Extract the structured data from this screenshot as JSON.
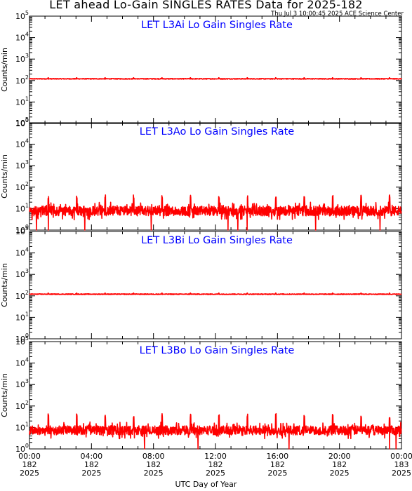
{
  "header": {
    "title": "LET ahead Lo-Gain SINGLES RATES Data for 2025-182",
    "timestamp": "Thu Jul  3 10:00:45 2025 ACE Science Center"
  },
  "colors": {
    "series": "#ff0000",
    "panel_title": "#0000ff",
    "axes": "#000000"
  },
  "chart_data": [
    {
      "type": "line",
      "title": "LET L3Ai Lo Gain Singles Rate",
      "ylabel": "Counts/min",
      "yscale": "log",
      "ylim": [
        1,
        100000
      ],
      "xlim": [
        "2025-07-01T00:00",
        "2025-07-02T00:00"
      ],
      "baseline": 120,
      "spike_value": 135,
      "spike_period_minutes": 110,
      "noise_range": [
        115,
        125
      ]
    },
    {
      "type": "line",
      "title": "LET L3Ao Lo Gain Singles Rate",
      "ylabel": "Counts/min",
      "yscale": "log",
      "ylim": [
        1,
        100000
      ],
      "xlim": [
        "2025-07-01T00:00",
        "2025-07-02T00:00"
      ],
      "baseline": 9,
      "spike_value": 40,
      "spike_period_minutes": 110,
      "noise_range": [
        3,
        20
      ],
      "dropouts_to": 1
    },
    {
      "type": "line",
      "title": "LET L3Bi Lo Gain Singles Rate",
      "ylabel": "Counts/min",
      "yscale": "log",
      "ylim": [
        1,
        100000
      ],
      "xlim": [
        "2025-07-01T00:00",
        "2025-07-02T00:00"
      ],
      "baseline": 120,
      "spike_value": 135,
      "spike_period_minutes": 110,
      "noise_range": [
        115,
        125
      ]
    },
    {
      "type": "line",
      "title": "LET L3Bo Lo Gain Singles Rate",
      "ylabel": "Counts/min",
      "yscale": "log",
      "ylim": [
        1,
        100000
      ],
      "xlim": [
        "2025-07-01T00:00",
        "2025-07-02T00:00"
      ],
      "baseline": 8,
      "spike_value": 40,
      "spike_period_minutes": 110,
      "noise_range": [
        3,
        18
      ],
      "dropouts_to": 1
    }
  ],
  "x_axis": {
    "label": "UTC Day of Year",
    "ticks": [
      {
        "time": "00:00",
        "doy": "182",
        "year": "2025"
      },
      {
        "time": "04:00",
        "doy": "182",
        "year": "2025"
      },
      {
        "time": "08:00",
        "doy": "182",
        "year": "2025"
      },
      {
        "time": "12:00",
        "doy": "182",
        "year": "2025"
      },
      {
        "time": "16:00",
        "doy": "182",
        "year": "2025"
      },
      {
        "time": "20:00",
        "doy": "182",
        "year": "2025"
      },
      {
        "time": "00:00",
        "doy": "183",
        "year": "2025"
      }
    ]
  },
  "y_ticks": [
    "10",
    "10",
    "10",
    "10",
    "10",
    "10"
  ],
  "y_tick_exponents": [
    "0",
    "1",
    "2",
    "3",
    "4",
    "5"
  ]
}
